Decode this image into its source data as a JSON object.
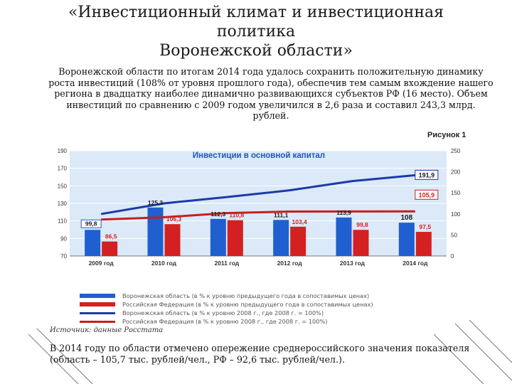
{
  "title": {
    "line1": "«Инвестиционный климат и инвестиционная",
    "line2": "политика",
    "line3": "Воронежской области»"
  },
  "intro_text": "Воронежской области по итогам 2014 года удалось сохранить положительную динамику роста инвестиций (108% от уровня прошлого года), обеспечив тем самым вхождение нашего региона в двадцатку наиболее динамично развивающихся субъектов РФ (16 место). Объем инвестиций по сравнению с 2009 годом увеличился в 2,6 раза и составил 243,3 млрд. рублей.",
  "figure_label": "Рисунок 1",
  "source_text": "Источник: данные Росстата",
  "bottom_text": "В 2014 году по области отмечено опережение среднероссийского значения показателя (область – 105,7 тыс. рублей/чел., РФ – 92,6 тыс. рублей/чел.).",
  "colors": {
    "region_bar": "#1f5fd0",
    "rf_bar": "#d42020",
    "region_line": "#1c3aa8",
    "rf_line": "#c81e1e",
    "title_color": "#1f56b8",
    "plot_bg": "#dbe9f8"
  },
  "chart_data": {
    "type": "bar",
    "title": "Инвестиции в основной капитал",
    "categories": [
      "2009 год",
      "2010 год",
      "2011 год",
      "2012 год",
      "2013 год",
      "2014 год"
    ],
    "ylim_left": [
      70,
      190
    ],
    "ylim_right": [
      0,
      250
    ],
    "left_ticks": [
      "190",
      "170",
      "150",
      "130",
      "110",
      "90",
      "70"
    ],
    "right_ticks": [
      "250",
      "200",
      "150",
      "100",
      "50",
      "0"
    ],
    "grid": true,
    "legend_position": "bottom",
    "series": [
      {
        "name": "Воронежская область (в % к уровню предыдущего года в сопоставимых ценах)",
        "kind": "bar",
        "axis": "left",
        "values": [
          99.8,
          125.3,
          112.3,
          111.1,
          113.9,
          108
        ],
        "labels": [
          "99,8",
          "125,3",
          "112,3",
          "111,1",
          "113,9",
          "108"
        ]
      },
      {
        "name": "Российская Федерация (в % к уровню предыдущего года в сопоставимых ценах)",
        "kind": "bar",
        "axis": "left",
        "values": [
          86.5,
          106.3,
          110.8,
          103.4,
          99.8,
          97.5
        ],
        "labels": [
          "86,5",
          "106,3",
          "110,8",
          "103,4",
          "99,8",
          "97,5"
        ]
      },
      {
        "name": "Воронежская область (в % к уровню 2008 г., где 2008 г. = 100%)",
        "kind": "line",
        "axis": "right",
        "values": [
          99.8,
          125,
          140,
          156,
          178,
          191.9
        ],
        "labels": [
          "",
          "",
          "",
          "",
          "",
          "191,9"
        ]
      },
      {
        "name": "Российская Федерация (в % к уровню 2008 г., где 2008 г. = 100%)",
        "kind": "line",
        "axis": "right",
        "values": [
          86.5,
          92,
          102,
          105.5,
          105.7,
          105.9
        ],
        "labels": [
          "",
          "",
          "",
          "",
          "",
          "105,9"
        ]
      }
    ]
  }
}
